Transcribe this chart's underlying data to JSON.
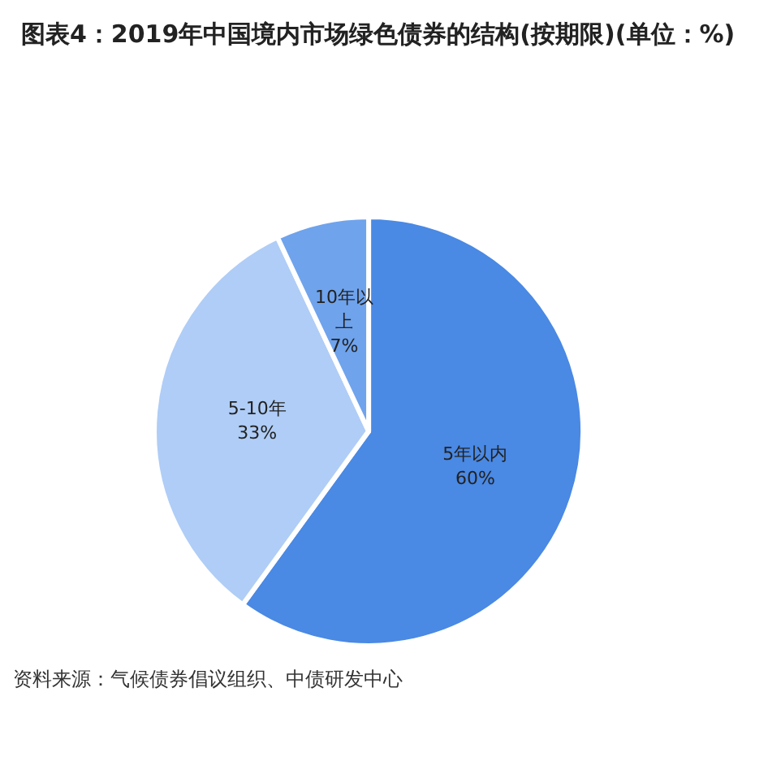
{
  "chart_data": {
    "type": "pie",
    "title": "图表4：2019年中国境内市场绿色债券的结构(按期限)(单位：%)",
    "categories": [
      "5年以内",
      "5-10年",
      "10年以上"
    ],
    "values": [
      60,
      33,
      7
    ],
    "value_labels": [
      "60%",
      "33%",
      "7%"
    ],
    "colors": [
      "#4a89e4",
      "#afcdf6",
      "#6fa3ec"
    ],
    "legend": false,
    "annotations": [
      "资料来源：气候债券倡议组织、中债研发中心"
    ]
  }
}
